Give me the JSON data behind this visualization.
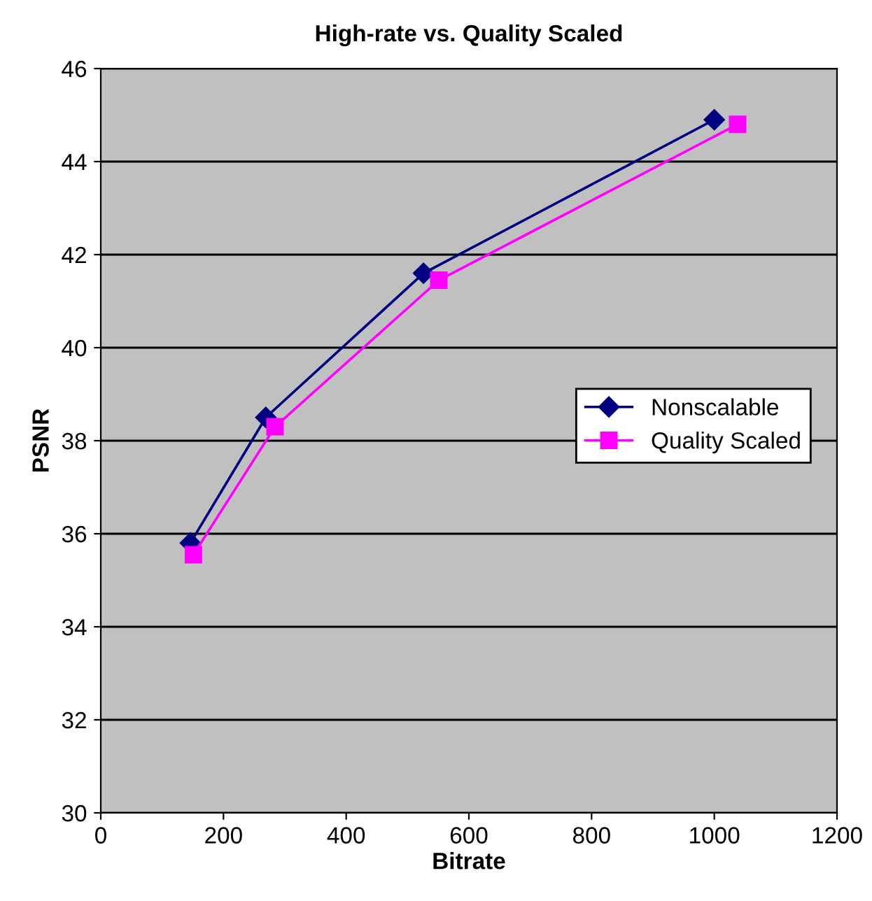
{
  "chart_data": {
    "type": "line",
    "title": "High-rate vs. Quality Scaled",
    "xlabel": "Bitrate",
    "ylabel": "PSNR",
    "series": [
      {
        "name": "Nonscalable",
        "color": "#000080",
        "marker": "diamond",
        "x": [
          146,
          269,
          526,
          1000
        ],
        "values": [
          35.8,
          38.5,
          41.6,
          44.9
        ]
      },
      {
        "name": "Quality Scaled",
        "color": "#ff00ff",
        "marker": "square",
        "x": [
          151,
          284,
          551,
          1038
        ],
        "values": [
          35.55,
          38.3,
          41.45,
          44.8
        ]
      }
    ],
    "xlim": [
      0,
      1200
    ],
    "xticks": [
      0,
      200,
      400,
      600,
      800,
      1000,
      1200
    ],
    "ylim": [
      30,
      46
    ],
    "yticks": [
      30,
      32,
      34,
      36,
      38,
      40,
      42,
      44,
      46
    ],
    "grid": "y",
    "legend": "right",
    "line_style": "solid"
  }
}
